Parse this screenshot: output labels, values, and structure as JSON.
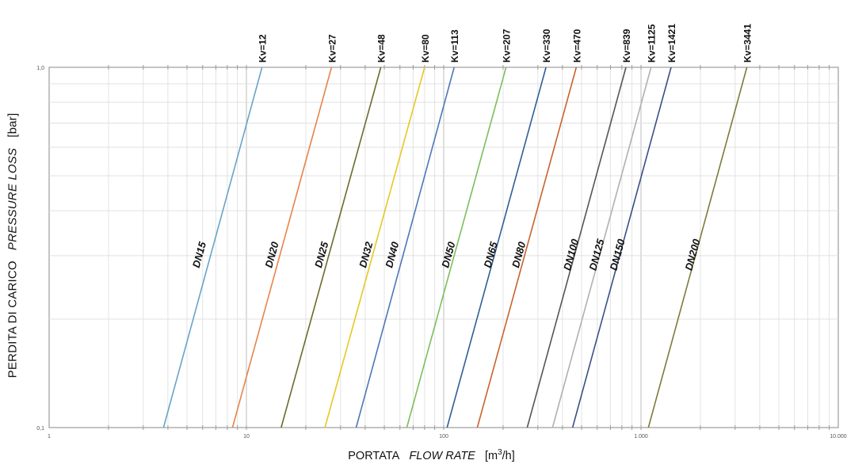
{
  "chart_data": {
    "type": "line",
    "x_scale": "log",
    "y_scale": "log",
    "xlim": [
      1,
      10000
    ],
    "ylim": [
      0.1,
      1.0
    ],
    "grid": true,
    "x_ticks": [
      {
        "value": 1,
        "label": "1"
      },
      {
        "value": 10,
        "label": "10"
      },
      {
        "value": 100,
        "label": "100"
      },
      {
        "value": 1000,
        "label": "1.000"
      },
      {
        "value": 10000,
        "label": "10.000"
      }
    ],
    "y_ticks": [
      {
        "value": 0.1,
        "label": "0,1"
      },
      {
        "value": 1.0,
        "label": "1,0"
      }
    ],
    "ylabel": {
      "plain": "PERDITA DI CARICO",
      "italic": "PRESSURE LOSS",
      "unit": "[bar]"
    },
    "xlabel": {
      "plain": "PORTATA",
      "italic": "FLOW RATE",
      "unit_pre": "[m",
      "unit_sup": "3",
      "unit_post": "/h]"
    },
    "series": [
      {
        "name": "DN15",
        "kv_label": "Kv=12",
        "color": "#6aa3c8",
        "points": [
          [
            3.8,
            0.1
          ],
          [
            12,
            1.0
          ]
        ],
        "label_pos": [
          6.0,
          0.3
        ]
      },
      {
        "name": "DN20",
        "kv_label": "Kv=27",
        "color": "#e8834a",
        "points": [
          [
            8.5,
            0.1
          ],
          [
            27,
            1.0
          ]
        ],
        "label_pos": [
          14.0,
          0.3
        ]
      },
      {
        "name": "DN25",
        "kv_label": "Kv=48",
        "color": "#6b6b2e",
        "points": [
          [
            15,
            0.1
          ],
          [
            48,
            1.0
          ]
        ],
        "label_pos": [
          25.0,
          0.3
        ]
      },
      {
        "name": "DN32",
        "kv_label": "Kv=80",
        "color": "#e6c822",
        "points": [
          [
            25,
            0.1
          ],
          [
            80,
            1.0
          ]
        ],
        "label_pos": [
          42.0,
          0.3
        ]
      },
      {
        "name": "DN40",
        "kv_label": "Kv=113",
        "color": "#4c78b8",
        "points": [
          [
            36,
            0.1
          ],
          [
            113,
            1.0
          ]
        ],
        "label_pos": [
          57.0,
          0.3
        ]
      },
      {
        "name": "DN50",
        "kv_label": "Kv=207",
        "color": "#7bbf5a",
        "points": [
          [
            65,
            0.1
          ],
          [
            207,
            1.0
          ]
        ],
        "label_pos": [
          110.0,
          0.3
        ]
      },
      {
        "name": "DN65",
        "kv_label": "Kv=330",
        "color": "#2f5f95",
        "points": [
          [
            104,
            0.1
          ],
          [
            330,
            1.0
          ]
        ],
        "label_pos": [
          180.0,
          0.3
        ]
      },
      {
        "name": "DN80",
        "kv_label": "Kv=470",
        "color": "#c9622f",
        "points": [
          [
            148,
            0.1
          ],
          [
            470,
            1.0
          ]
        ],
        "label_pos": [
          250.0,
          0.3
        ]
      },
      {
        "name": "DN100",
        "kv_label": "Kv=839",
        "color": "#555555",
        "points": [
          [
            265,
            0.1
          ],
          [
            839,
            1.0
          ]
        ],
        "label_pos": [
          460.0,
          0.3
        ]
      },
      {
        "name": "DN125",
        "kv_label": "Kv=1125",
        "color": "#b0b0b0",
        "points": [
          [
            356,
            0.1
          ],
          [
            1125,
            1.0
          ]
        ],
        "label_pos": [
          620.0,
          0.3
        ]
      },
      {
        "name": "DN150",
        "kv_label": "Kv=1421",
        "color": "#3a4f86",
        "points": [
          [
            450,
            0.1
          ],
          [
            1421,
            1.0
          ]
        ],
        "label_pos": [
          790.0,
          0.3
        ]
      },
      {
        "name": "DN200",
        "kv_label": "Kv=3441",
        "color": "#7d7a3c",
        "points": [
          [
            1090,
            0.1
          ],
          [
            3441,
            1.0
          ]
        ],
        "label_pos": [
          1900.0,
          0.3
        ]
      }
    ]
  }
}
